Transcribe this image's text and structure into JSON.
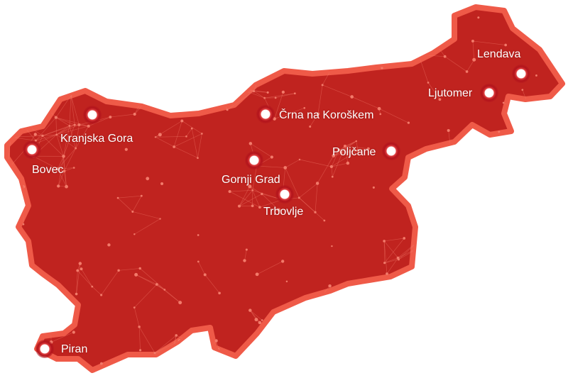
{
  "map": {
    "region": "Slovenia",
    "colors": {
      "fill": "#c0231f",
      "border": "#ef5a48",
      "network": "#f27a6a",
      "marker": "#ffffff"
    },
    "cities": [
      {
        "id": "kranjska-gora",
        "name": "Kranjska Gora"
      },
      {
        "id": "bovec",
        "name": "Bovec"
      },
      {
        "id": "crna",
        "name": "Črna na Koroškem"
      },
      {
        "id": "gornji-grad",
        "name": "Gornji Grad"
      },
      {
        "id": "trbovlje",
        "name": "Trbovlje"
      },
      {
        "id": "poljcane",
        "name": "Poljčane"
      },
      {
        "id": "ljutomer",
        "name": "Ljutomer"
      },
      {
        "id": "lendava",
        "name": "Lendava"
      },
      {
        "id": "piran",
        "name": "Piran"
      }
    ]
  }
}
